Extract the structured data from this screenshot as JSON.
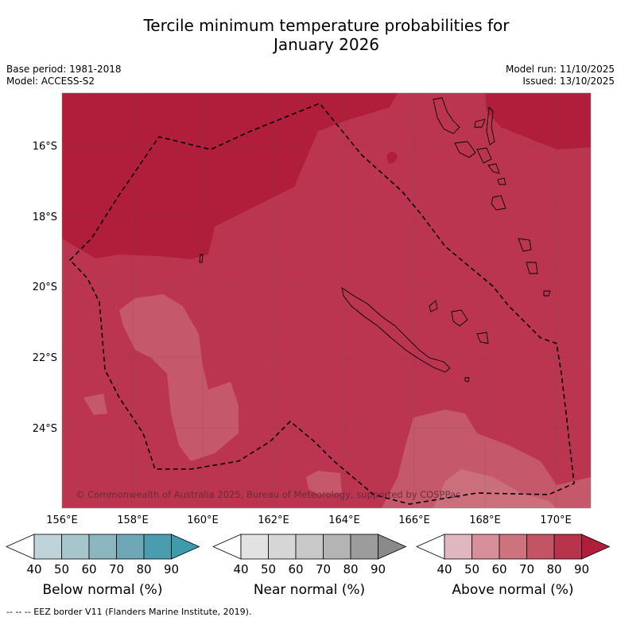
{
  "title": {
    "line1": "Tercile minimum temperature probabilities for",
    "line2": "January 2026"
  },
  "meta": {
    "base_period": "Base period: 1981-2018",
    "model": "Model: ACCESS-S2",
    "model_run": "Model run: 11/10/2025",
    "issued": "Issued: 13/10/2025"
  },
  "map": {
    "lat_labels": [
      "16°S",
      "18°S",
      "20°S",
      "22°S",
      "24°S"
    ],
    "lon_labels": [
      "156°E",
      "158°E",
      "160°E",
      "162°E",
      "164°E",
      "166°E",
      "168°E",
      "170°E"
    ],
    "copyright": "© Commonwealth of Australia 2025, Bureau of Meteorology, supported by COSPPac"
  },
  "colorbars": {
    "ticks": [
      "40",
      "50",
      "60",
      "70",
      "80",
      "90"
    ],
    "below": {
      "label": "Below normal (%)",
      "colors": [
        "#bfd3da",
        "#a6c6cc",
        "#8bb6c0",
        "#6ea8b6",
        "#4b9cae",
        "#3d9bab"
      ]
    },
    "near": {
      "label": "Near normal (%)",
      "colors": [
        "#e2e2e2",
        "#d6d6d6",
        "#c8c8c8",
        "#b4b4b4",
        "#9c9c9c",
        "#8a8a8a"
      ]
    },
    "above": {
      "label": "Above normal (%)",
      "colors": [
        "#e0b7bf",
        "#d78f99",
        "#cc737e",
        "#c25464",
        "#b8334c",
        "#b01e3c"
      ]
    }
  },
  "colors": {
    "prob_90": "#b01e3c",
    "prob_80": "#bb3450",
    "prob_70": "#c5586a",
    "prob_60": "#cc6f7d"
  },
  "footer": "--  --  -- EEZ border V11 (Flanders Marine Institute, 2019)."
}
